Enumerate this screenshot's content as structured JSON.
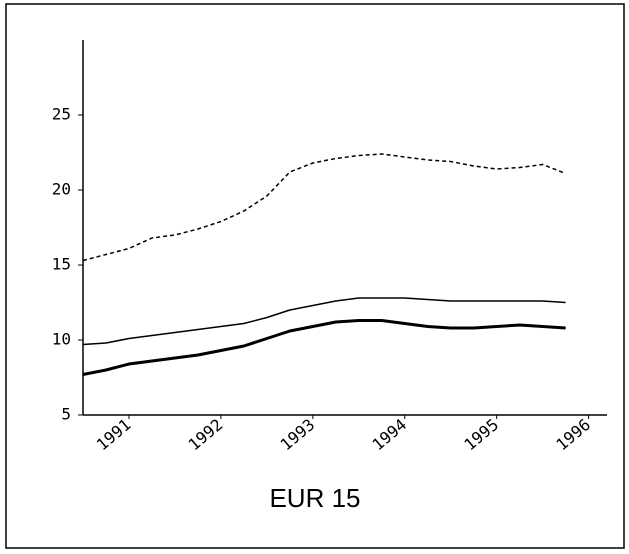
{
  "chart_data": {
    "type": "line",
    "title": "EUR 15",
    "x": [
      1990.5,
      1990.75,
      1991,
      1991.25,
      1991.5,
      1991.75,
      1992,
      1992.25,
      1992.5,
      1992.75,
      1993,
      1993.25,
      1993.5,
      1993.75,
      1994,
      1994.25,
      1994.5,
      1994.75,
      1995,
      1995.25,
      1995.5,
      1995.75
    ],
    "xlim": [
      1990.5,
      1996.2
    ],
    "xticks": [
      1991,
      1992,
      1993,
      1994,
      1995,
      1996
    ],
    "ylim": [
      5,
      30
    ],
    "yticks": [
      5,
      10,
      15,
      20,
      25
    ],
    "grid": false,
    "series": [
      {
        "color": "#000000",
        "dash": "4 3",
        "width": 1.5,
        "values": [
          15.3,
          15.7,
          16.1,
          16.8,
          17.0,
          17.4,
          17.9,
          18.6,
          19.6,
          21.2,
          21.8,
          22.1,
          22.3,
          22.4,
          22.2,
          22.0,
          21.9,
          21.6,
          21.4,
          21.5,
          21.7,
          21.1
        ]
      },
      {
        "color": "#000000",
        "dash": "none",
        "width": 1.5,
        "values": [
          9.7,
          9.8,
          10.1,
          10.3,
          10.5,
          10.7,
          10.9,
          11.1,
          11.5,
          12.0,
          12.3,
          12.6,
          12.8,
          12.8,
          12.8,
          12.7,
          12.6,
          12.6,
          12.6,
          12.6,
          12.6,
          12.5
        ]
      },
      {
        "color": "#000000",
        "dash": "none",
        "width": 3,
        "values": [
          7.7,
          8.0,
          8.4,
          8.6,
          8.8,
          9.0,
          9.3,
          9.6,
          10.1,
          10.6,
          10.9,
          11.2,
          11.3,
          11.3,
          11.1,
          10.9,
          10.8,
          10.8,
          10.9,
          11.0,
          10.9,
          10.8
        ]
      }
    ]
  }
}
